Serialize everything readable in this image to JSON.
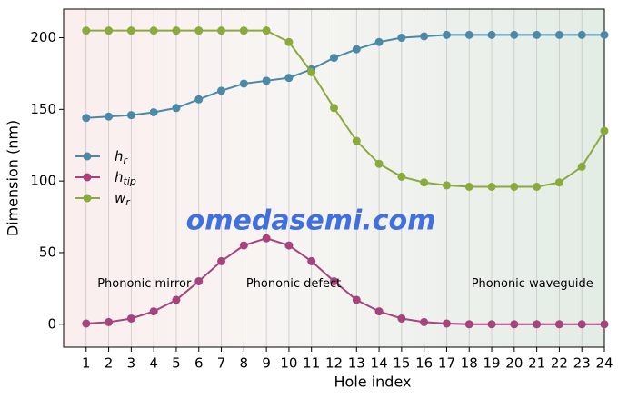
{
  "chart_data": {
    "type": "line",
    "xlabel": "Hole index",
    "ylabel": "Dimension (nm)",
    "x": [
      1,
      2,
      3,
      4,
      5,
      6,
      7,
      8,
      9,
      10,
      11,
      12,
      13,
      14,
      15,
      16,
      17,
      18,
      19,
      20,
      21,
      22,
      23,
      24
    ],
    "xlim": [
      0,
      24
    ],
    "xticks": [
      1,
      2,
      3,
      4,
      5,
      6,
      7,
      8,
      9,
      10,
      11,
      12,
      13,
      14,
      15,
      16,
      17,
      18,
      19,
      20,
      21,
      22,
      23,
      24
    ],
    "ylim": [
      -16,
      220
    ],
    "yticks": [
      0,
      50,
      100,
      150,
      200
    ],
    "grid": true,
    "series": [
      {
        "name": "h",
        "subscript": "r",
        "color": "#4b89a8",
        "values": [
          144,
          145,
          146,
          148,
          151,
          157,
          163,
          168,
          170,
          172,
          178,
          186,
          192,
          197,
          200,
          201,
          202,
          202,
          202,
          202,
          202,
          202,
          202,
          202
        ]
      },
      {
        "name": "h",
        "subscript": "tip",
        "color": "#a6437d",
        "values": [
          0.5,
          1.5,
          4,
          9,
          17,
          30,
          44,
          55,
          60,
          55,
          44,
          30,
          17,
          9,
          4,
          1.5,
          0.5,
          0,
          0,
          0,
          0,
          0,
          0,
          0
        ]
      },
      {
        "name": "w",
        "subscript": "r",
        "color": "#8aaa3b",
        "values": [
          205,
          205,
          205,
          205,
          205,
          205,
          205,
          205,
          205,
          197,
          176,
          151,
          128,
          112,
          103,
          99,
          97,
          96,
          96,
          96,
          96,
          99,
          110,
          135
        ]
      }
    ],
    "annotations": [
      {
        "text": "Phononic mirror",
        "x": 1.5,
        "y": 28
      },
      {
        "text": "Phononic defect",
        "x": 8.1,
        "y": 28
      },
      {
        "text": "Phononic waveguide",
        "x": 18.1,
        "y": 28
      }
    ],
    "watermark": "omedasemi.com"
  }
}
